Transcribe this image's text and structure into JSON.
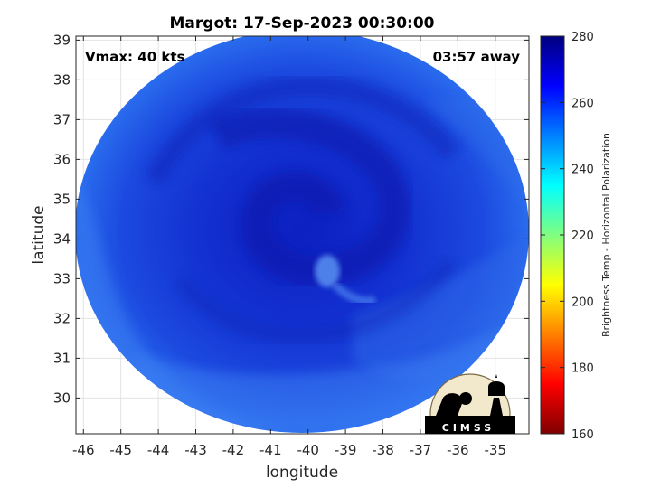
{
  "chart_data": {
    "type": "heatmap",
    "title": "Margot: 17-Sep-2023 00:30:00",
    "xlabel": "longitude",
    "ylabel": "latitude",
    "xlim": [
      -46.2,
      -34.1
    ],
    "ylim": [
      29.1,
      39.1
    ],
    "xticks": [
      "-46",
      "-45",
      "-44",
      "-43",
      "-42",
      "-41",
      "-40",
      "-39",
      "-38",
      "-37",
      "-36",
      "-35"
    ],
    "yticks": [
      "39",
      "38",
      "37",
      "36",
      "35",
      "34",
      "33",
      "32",
      "31",
      "30"
    ],
    "grid": true,
    "annotations": {
      "vmax": "Vmax: 40 kts",
      "time_away": "03:57 away"
    },
    "colorbar": {
      "label": "Brightness Temp - Horizontal Polarization",
      "range": [
        160,
        280
      ],
      "ticks": [
        "280",
        "260",
        "240",
        "220",
        "200",
        "180",
        "160"
      ],
      "colormap": [
        "#7f0000",
        "#ff0000",
        "#ff8000",
        "#ffff00",
        "#80ff80",
        "#00ffff",
        "#0080ff",
        "#0000ff",
        "#00007f"
      ]
    },
    "swath": {
      "shape": "circle",
      "center_lon": -40.2,
      "center_lat": 34.2,
      "typical_temp": 264,
      "eye_feature": {
        "lon": -39.6,
        "lat": 33.3,
        "temp": 252
      }
    },
    "logo_text": "CIMSS"
  }
}
